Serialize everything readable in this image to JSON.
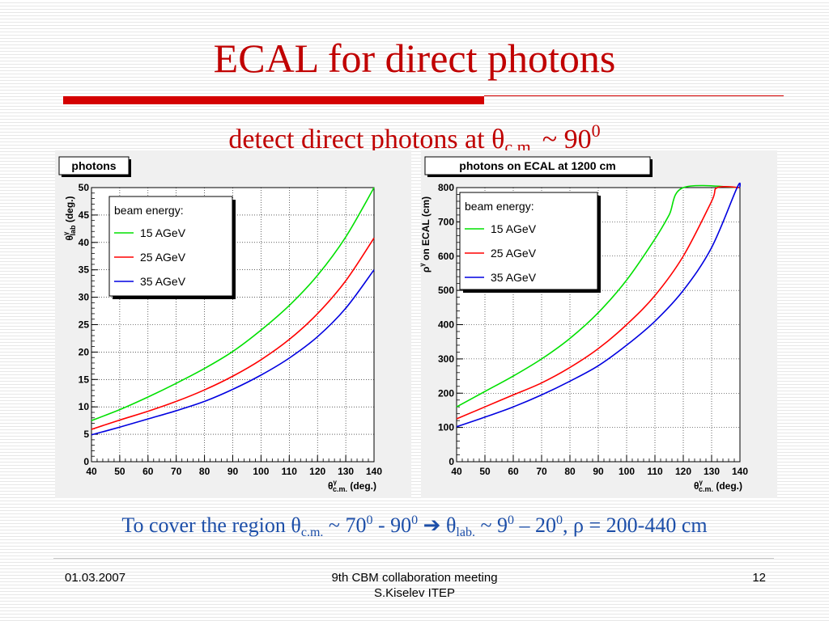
{
  "slide": {
    "title": "ECAL for direct photons",
    "subtitle_main": "detect direct photons at θ",
    "subtitle_sub": "c.m.",
    "subtitle_mid": " ~ 90",
    "subtitle_sup": "0",
    "bottom": {
      "t1": "To cover the region θ",
      "s1": "c.m.",
      "t2": " ~ 70",
      "p1": "0",
      "t3": " - 90",
      "p2": "0",
      "t4": "  ➔ θ",
      "s2": "lab.",
      "t5": " ~ 9",
      "p3": "0",
      "t6": " – 20",
      "p4": "0",
      "t7": ", ρ = 200-440 cm"
    },
    "footer": {
      "date": "01.03.2007",
      "meeting": "9th CBM collaboration meeting",
      "author": "S.Kiselev ITEP",
      "page": "12"
    }
  },
  "colors": {
    "title": "#c00000",
    "bottom_text": "#1c4ea8",
    "green": "#00e000",
    "red": "#ff0000",
    "blue": "#0000e0"
  },
  "chart_data": [
    {
      "type": "line",
      "title": "photons",
      "xlabel": "θγc.m. (deg.)",
      "ylabel": "θγlab (deg.)",
      "xlim": [
        40,
        140
      ],
      "ylim": [
        0,
        50
      ],
      "xticks": [
        40,
        50,
        60,
        70,
        80,
        90,
        100,
        110,
        120,
        130,
        140
      ],
      "yticks": [
        0,
        5,
        10,
        15,
        20,
        25,
        30,
        35,
        40,
        45,
        50
      ],
      "legend_title": "beam energy:",
      "legend_position": "top-left",
      "series": [
        {
          "name": "15 AGeV",
          "color": "#00e000",
          "x": [
            40,
            50,
            60,
            70,
            80,
            90,
            100,
            110,
            120,
            130,
            140
          ],
          "y": [
            7.5,
            9.5,
            11.8,
            14.3,
            17.0,
            20.1,
            24.0,
            28.5,
            34.0,
            41.0,
            50.0
          ]
        },
        {
          "name": "25 AGeV",
          "color": "#ff0000",
          "x": [
            40,
            50,
            60,
            70,
            80,
            90,
            100,
            110,
            120,
            130,
            140
          ],
          "y": [
            5.9,
            7.6,
            9.2,
            11.0,
            13.1,
            15.6,
            18.6,
            22.3,
            27.0,
            33.0,
            40.8
          ]
        },
        {
          "name": "35 AGeV",
          "color": "#0000e0",
          "x": [
            40,
            50,
            60,
            70,
            80,
            90,
            100,
            110,
            120,
            130,
            140
          ],
          "y": [
            4.9,
            6.3,
            7.8,
            9.3,
            11.0,
            13.2,
            15.8,
            18.9,
            22.8,
            28.0,
            35.0
          ]
        }
      ]
    },
    {
      "type": "line",
      "title": "photons on ECAL at 1200 cm",
      "xlabel": "θγc.m. (deg.)",
      "ylabel": "ργ on ECAL (cm)",
      "xlim": [
        40,
        140
      ],
      "ylim": [
        0,
        800
      ],
      "xticks": [
        40,
        50,
        60,
        70,
        80,
        90,
        100,
        110,
        120,
        130,
        140
      ],
      "yticks": [
        0,
        100,
        200,
        300,
        400,
        500,
        600,
        700,
        800
      ],
      "legend_title": "beam energy:",
      "legend_position": "top-left",
      "series": [
        {
          "name": "15 AGeV",
          "color": "#00e000",
          "x": [
            40,
            50,
            60,
            70,
            80,
            90,
            100,
            110,
            115,
            120,
            140
          ],
          "y": [
            160,
            205,
            250,
            300,
            360,
            435,
            530,
            650,
            720,
            800,
            800
          ]
        },
        {
          "name": "25 AGeV",
          "color": "#ff0000",
          "x": [
            40,
            50,
            60,
            70,
            80,
            90,
            100,
            110,
            120,
            130,
            132,
            140
          ],
          "y": [
            125,
            160,
            195,
            230,
            275,
            330,
            400,
            485,
            600,
            760,
            800,
            800
          ]
        },
        {
          "name": "35 AGeV",
          "color": "#0000e0",
          "x": [
            40,
            50,
            60,
            70,
            80,
            90,
            100,
            110,
            120,
            130,
            139,
            140
          ],
          "y": [
            102,
            130,
            160,
            195,
            235,
            280,
            340,
            410,
            500,
            625,
            800,
            800
          ]
        }
      ]
    }
  ]
}
